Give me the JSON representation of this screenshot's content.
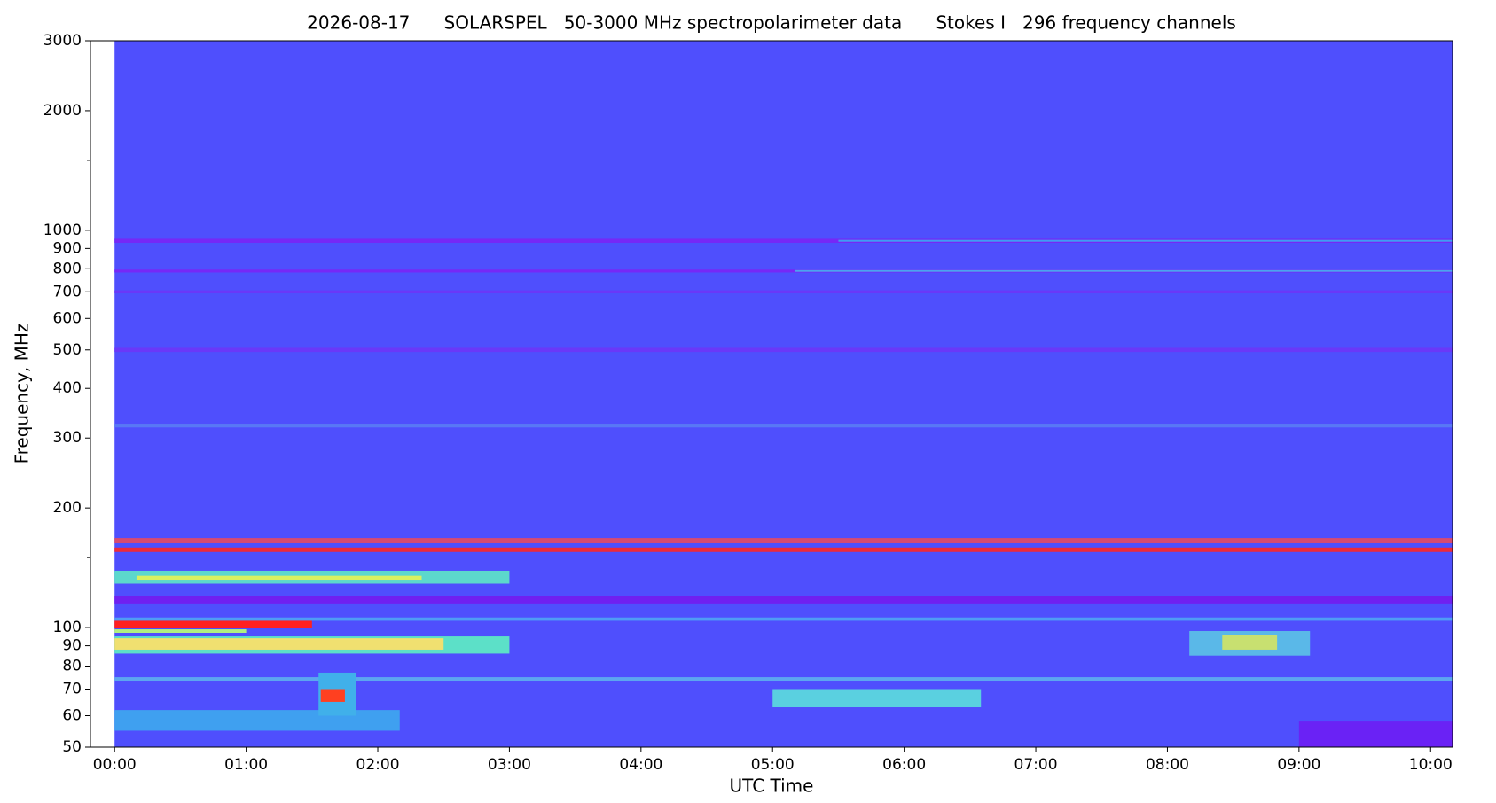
{
  "chart_data": {
    "type": "spectrogram",
    "title": "2026-08-17      SOLARSPEL   50-3000 MHz spectropolarimeter data      Stokes I   296 frequency channels",
    "xlabel": "UTC Time",
    "ylabel": "Frequency, MHz",
    "yscale": "log",
    "xlim": [
      -11,
      610
    ],
    "ylim": [
      50,
      3000
    ],
    "xticks": [
      {
        "value": 0,
        "label": "00:00"
      },
      {
        "value": 60,
        "label": "01:00"
      },
      {
        "value": 120,
        "label": "02:00"
      },
      {
        "value": 180,
        "label": "03:00"
      },
      {
        "value": 240,
        "label": "04:00"
      },
      {
        "value": 300,
        "label": "05:00"
      },
      {
        "value": 360,
        "label": "06:00"
      },
      {
        "value": 420,
        "label": "07:00"
      },
      {
        "value": 480,
        "label": "08:00"
      },
      {
        "value": 540,
        "label": "09:00"
      },
      {
        "value": 600,
        "label": "10:00"
      }
    ],
    "yticks": [
      50,
      60,
      70,
      80,
      90,
      100,
      200,
      300,
      400,
      500,
      600,
      700,
      800,
      900,
      1000,
      2000,
      3000
    ],
    "yticks_minor": [
      150,
      1500
    ],
    "background": {
      "time": [
        0,
        610
      ],
      "freq": [
        50,
        3000
      ],
      "color": "#4f4ffd"
    },
    "bands": [
      {
        "time": [
          0,
          610
        ],
        "freq": [
          930,
          952
        ],
        "color": "#7628f6"
      },
      {
        "time": [
          330,
          610
        ],
        "freq": [
          936,
          946
        ],
        "color": "#3f9cf2"
      },
      {
        "time": [
          0,
          610
        ],
        "freq": [
          783,
          796
        ],
        "color": "#7628f6"
      },
      {
        "time": [
          310,
          610
        ],
        "freq": [
          786,
          794
        ],
        "color": "#4aa4ee"
      },
      {
        "time": [
          0,
          610
        ],
        "freq": [
          694,
          706
        ],
        "color": "#6a38f8"
      },
      {
        "time": [
          0,
          610
        ],
        "freq": [
          494,
          506
        ],
        "color": "#6a38f8"
      },
      {
        "time": [
          0,
          610
        ],
        "freq": [
          319,
          326
        ],
        "color": "#5878f5"
      },
      {
        "time": [
          0,
          610
        ],
        "freq": [
          163,
          168
        ],
        "color": "#d84a70"
      },
      {
        "time": [
          0,
          610
        ],
        "freq": [
          155,
          159
        ],
        "color": "#ee2a3a"
      },
      {
        "time": [
          0,
          180
        ],
        "freq": [
          129,
          139
        ],
        "color": "#5cd8cc"
      },
      {
        "time": [
          10,
          140
        ],
        "freq": [
          132,
          135
        ],
        "color": "#d8f060"
      },
      {
        "time": [
          0,
          610
        ],
        "freq": [
          115,
          120
        ],
        "color": "#7020f0"
      },
      {
        "time": [
          0,
          610
        ],
        "freq": [
          104,
          106
        ],
        "color": "#4f9cf5"
      },
      {
        "time": [
          0,
          90
        ],
        "freq": [
          100,
          104
        ],
        "color": "#ff2020"
      },
      {
        "time": [
          0,
          60
        ],
        "freq": [
          97,
          99
        ],
        "color": "#b0f080"
      },
      {
        "time": [
          0,
          180
        ],
        "freq": [
          86,
          95
        ],
        "color": "#5ce0c8"
      },
      {
        "time": [
          0,
          150
        ],
        "freq": [
          88,
          94
        ],
        "color": "#f0e070"
      },
      {
        "time": [
          0,
          610
        ],
        "freq": [
          73.5,
          75
        ],
        "color": "#5ca6f0"
      },
      {
        "time": [
          0,
          130
        ],
        "freq": [
          55,
          62
        ],
        "color": "#3fa0f0"
      },
      {
        "time": [
          93,
          110
        ],
        "freq": [
          60,
          77
        ],
        "color": "#40b0ea"
      },
      {
        "time": [
          94,
          105
        ],
        "freq": [
          65,
          70
        ],
        "color": "#ff4020"
      },
      {
        "time": [
          300,
          395
        ],
        "freq": [
          63,
          70
        ],
        "color": "#5ad0e0"
      },
      {
        "time": [
          490,
          545
        ],
        "freq": [
          85,
          98
        ],
        "color": "#5ab8e8"
      },
      {
        "time": [
          505,
          530
        ],
        "freq": [
          88,
          96
        ],
        "color": "#c8e070"
      },
      {
        "time": [
          540,
          610
        ],
        "freq": [
          50,
          58
        ],
        "color": "#6a22f5"
      }
    ]
  }
}
